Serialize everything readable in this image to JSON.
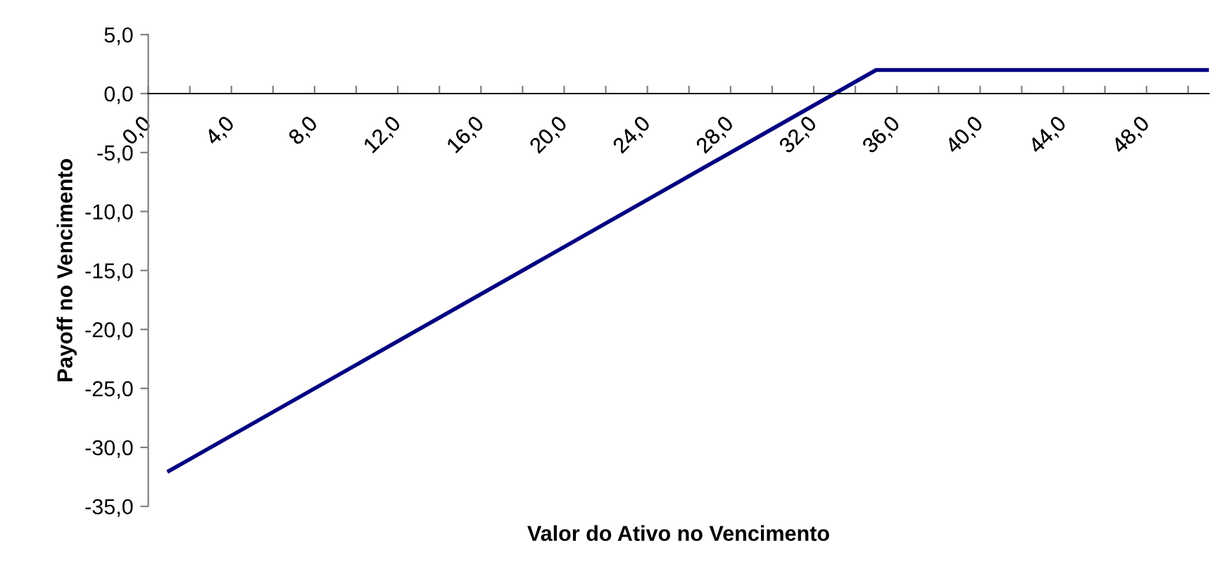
{
  "chart_data": {
    "type": "line",
    "xlabel": "Valor do Ativo no Vencimento",
    "ylabel": "Payoff no Vencimento",
    "x": [
      1,
      35,
      51
    ],
    "series": [
      {
        "color": "#000080",
        "values": [
          -32,
          2,
          2
        ]
      }
    ],
    "xlim": [
      0,
      51
    ],
    "xticks": [
      {
        "value": 0,
        "label": "0,0"
      },
      {
        "value": 2,
        "label": null
      },
      {
        "value": 4,
        "label": "4,0"
      },
      {
        "value": 6,
        "label": null
      },
      {
        "value": 8,
        "label": "8,0"
      },
      {
        "value": 10,
        "label": null
      },
      {
        "value": 12,
        "label": "12,0"
      },
      {
        "value": 14,
        "label": null
      },
      {
        "value": 16,
        "label": "16,0"
      },
      {
        "value": 18,
        "label": null
      },
      {
        "value": 20,
        "label": "20,0"
      },
      {
        "value": 22,
        "label": null
      },
      {
        "value": 24,
        "label": "24,0"
      },
      {
        "value": 26,
        "label": null
      },
      {
        "value": 28,
        "label": "28,0"
      },
      {
        "value": 30,
        "label": null
      },
      {
        "value": 32,
        "label": "32,0"
      },
      {
        "value": 34,
        "label": null
      },
      {
        "value": 36,
        "label": "36,0"
      },
      {
        "value": 38,
        "label": null
      },
      {
        "value": 40,
        "label": "40,0"
      },
      {
        "value": 42,
        "label": null
      },
      {
        "value": 44,
        "label": "44,0"
      },
      {
        "value": 46,
        "label": null
      },
      {
        "value": 48,
        "label": "48,0"
      },
      {
        "value": 50,
        "label": null
      }
    ],
    "ylim": [
      -35,
      5
    ],
    "yticks": [
      {
        "value": 5,
        "label": "5,0"
      },
      {
        "value": 0,
        "label": "0,0"
      },
      {
        "value": -5,
        "label": "-5,0"
      },
      {
        "value": -10,
        "label": "-10,0"
      },
      {
        "value": -15,
        "label": "-15,0"
      },
      {
        "value": -20,
        "label": "-20,0"
      },
      {
        "value": -25,
        "label": "-25,0"
      },
      {
        "value": -30,
        "label": "-30,0"
      },
      {
        "value": -35,
        "label": "-35,0"
      }
    ],
    "grid": false,
    "marker": "none",
    "line_style": "solid"
  }
}
